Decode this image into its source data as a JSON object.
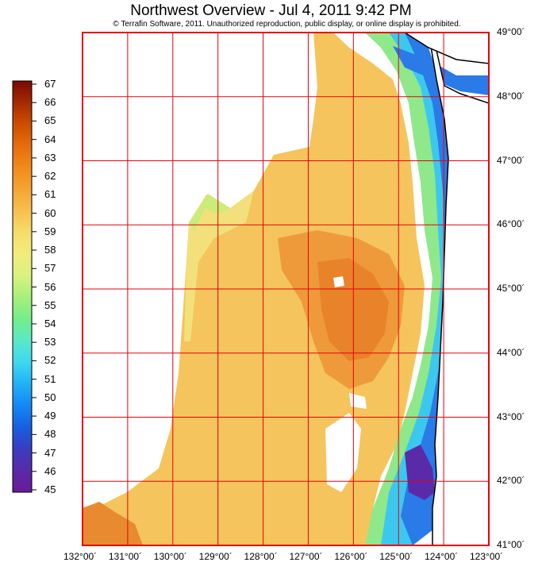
{
  "title": "Northwest Overview - Jul 4, 2011 9:42 PM",
  "copyright": "© Terrafin Software,  2011.  Unauthorized reproduction, public display, or online display is prohibited.",
  "map": {
    "lon_labels": [
      "132°00´",
      "131°00´",
      "130°00´",
      "129°00´",
      "128°00´",
      "127°00´",
      "126°00´",
      "125°00´",
      "124°00´",
      "123°00´"
    ],
    "lat_labels": [
      "49°00´",
      "48°00´",
      "47°00´",
      "46°00´",
      "45°00´",
      "44°00´",
      "43°00´",
      "42°00´",
      "41°00´"
    ],
    "lon_range": [
      -132,
      -123
    ],
    "lat_range": [
      41,
      49
    ],
    "grid_color": "#e8000b"
  },
  "colorbar": {
    "values": [
      "67",
      "66",
      "65",
      "64",
      "63",
      "62",
      "61",
      "60",
      "59",
      "58",
      "57",
      "56",
      "55",
      "54",
      "53",
      "52",
      "51",
      "50",
      "49",
      "48",
      "47",
      "46",
      "45"
    ],
    "stops": [
      "#7a0a00",
      "#a52a00",
      "#cc4e00",
      "#e56d10",
      "#f28a1c",
      "#f4a535",
      "#f6c050",
      "#f7dc6b",
      "#f2ec7c",
      "#d9f27f",
      "#a6f07a",
      "#73ee8a",
      "#5be8c8",
      "#3ed8f0",
      "#22b0f5",
      "#1488f5",
      "#1660e0",
      "#3a3cc0",
      "#5a2aa8",
      "#6a1a98"
    ]
  }
}
